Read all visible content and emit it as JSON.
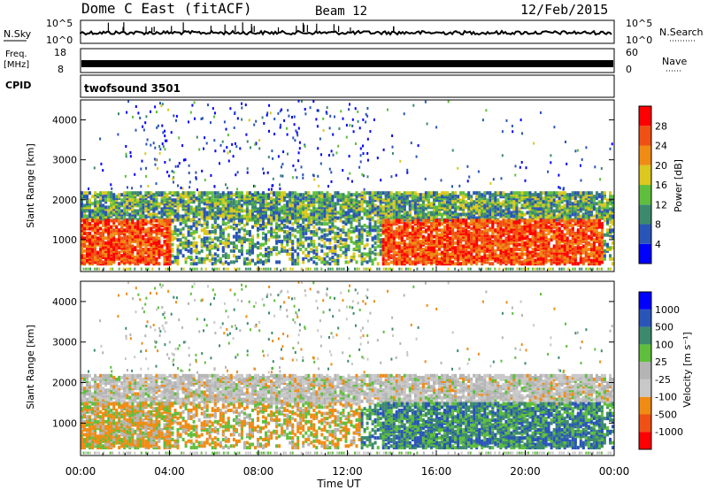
{
  "header": {
    "station": "Dome C East (fitACF)",
    "beam": "Beam 12",
    "date": "12/Feb/2015"
  },
  "top_panels": {
    "nsky_label": "N.Sky",
    "nsky_ticks": [
      "10^5",
      "10^0"
    ],
    "nsearch_label": "N.Search",
    "nsearch_ticks": [
      "10^5",
      "10^0"
    ],
    "freq_label_1": "Freq.",
    "freq_label_2": "[MHz]",
    "freq_ticks": [
      "18",
      "8"
    ],
    "nave_label": "Nave",
    "nave_ticks": [
      "60",
      "0"
    ],
    "cpid_label": "CPID",
    "cpid_value": "twofsound 3501"
  },
  "colors": {
    "power_scale": [
      "#0000ff",
      "#2a55b8",
      "#3c8a6e",
      "#5fbf3c",
      "#dcc81e",
      "#f08c14",
      "#f05014",
      "#ff0000"
    ],
    "velocity_scale": [
      "#ff0000",
      "#f05014",
      "#f08c14",
      "#c8c8c8",
      "#b4b4b4",
      "#5fbf3c",
      "#3c8a6e",
      "#2a55b8",
      "#0000ff"
    ]
  },
  "chart_data": [
    {
      "type": "heatmap",
      "name": "power",
      "ylabel": "Slant Range [km]",
      "yticks": [
        "1000",
        "2000",
        "3000",
        "4000"
      ],
      "xlabel": "Time UT",
      "xticks": [
        "00:00",
        "04:00",
        "08:00",
        "12:00",
        "16:00",
        "20:00",
        "00:00"
      ],
      "colorbar_label": "Power [dB]",
      "colorbar_ticks": [
        "4",
        "8",
        "12",
        "16",
        "20",
        "24",
        "28"
      ],
      "ylim": [
        200,
        4500
      ],
      "xlim_hours": [
        0,
        24
      ]
    },
    {
      "type": "heatmap",
      "name": "velocity",
      "ylabel": "Slant Range [km]",
      "yticks": [
        "1000",
        "2000",
        "3000",
        "4000"
      ],
      "xlabel": "Time UT",
      "xticks": [
        "00:00",
        "04:00",
        "08:00",
        "12:00",
        "16:00",
        "20:00",
        "00:00"
      ],
      "colorbar_label": "Velocity [m s⁻¹]",
      "colorbar_ticks": [
        "1000",
        "500",
        "100",
        "25",
        "-25",
        "-100",
        "-500",
        "-1000"
      ],
      "ylim": [
        200,
        4500
      ],
      "xlim_hours": [
        0,
        24
      ]
    }
  ]
}
